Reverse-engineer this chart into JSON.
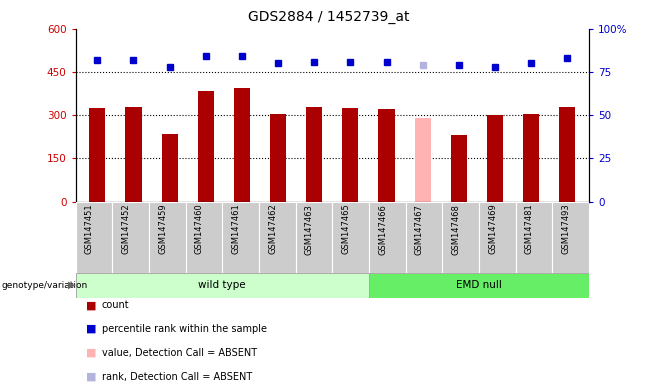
{
  "title": "GDS2884 / 1452739_at",
  "samples": [
    "GSM147451",
    "GSM147452",
    "GSM147459",
    "GSM147460",
    "GSM147461",
    "GSM147462",
    "GSM147463",
    "GSM147465",
    "GSM147466",
    "GSM147467",
    "GSM147468",
    "GSM147469",
    "GSM147481",
    "GSM147493"
  ],
  "counts": [
    325,
    328,
    235,
    385,
    395,
    305,
    330,
    325,
    320,
    290,
    230,
    300,
    305,
    330
  ],
  "percentile_ranks": [
    82,
    82,
    78,
    84,
    84,
    80,
    81,
    81,
    81,
    79,
    79,
    78,
    80,
    83
  ],
  "absent_mask": [
    false,
    false,
    false,
    false,
    false,
    false,
    false,
    false,
    false,
    true,
    false,
    false,
    false,
    false
  ],
  "bar_color_normal": "#aa0000",
  "bar_color_absent": "#ffb3b3",
  "dot_color_normal": "#0000cc",
  "dot_color_absent": "#b3b3dd",
  "wild_type_indices": [
    0,
    1,
    2,
    3,
    4,
    5,
    6,
    7
  ],
  "emd_null_indices": [
    8,
    9,
    10,
    11,
    12,
    13
  ],
  "ylim_left": [
    0,
    600
  ],
  "ylim_right": [
    0,
    100
  ],
  "yticks_left": [
    0,
    150,
    300,
    450,
    600
  ],
  "yticks_right": [
    0,
    25,
    50,
    75,
    100
  ],
  "ytick_labels_left": [
    "0",
    "150",
    "300",
    "450",
    "600"
  ],
  "ytick_labels_right": [
    "0",
    "25",
    "50",
    "75",
    "100%"
  ],
  "hlines": [
    150,
    300,
    450
  ],
  "wild_type_color": "#ccffcc",
  "emd_null_color": "#66ee66",
  "xtick_bg_color": "#cccccc",
  "group_label": "genotype/variation",
  "wild_type_label": "wild type",
  "emd_null_label": "EMD null",
  "legend_items": [
    {
      "label": "count",
      "color": "#aa0000"
    },
    {
      "label": "percentile rank within the sample",
      "color": "#0000cc"
    },
    {
      "label": "value, Detection Call = ABSENT",
      "color": "#ffb3b3"
    },
    {
      "label": "rank, Detection Call = ABSENT",
      "color": "#b3b3dd"
    }
  ]
}
